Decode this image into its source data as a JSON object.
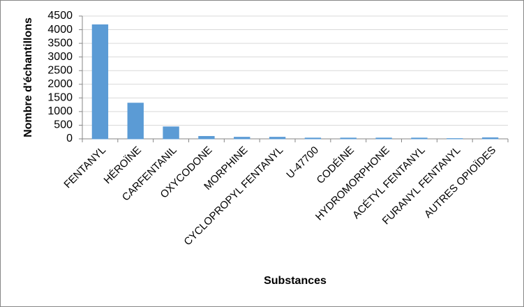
{
  "chart_data": {
    "type": "bar",
    "x_label": "Substances",
    "y_label": "Nombre d'échantillons",
    "categories": [
      "FENTANYL",
      "HÉROÏNE",
      "CARFENTANIL",
      "OXYCODONE",
      "MORPHINE",
      "CYCLOPROPYL FENTANYL",
      "U-47700",
      "CODÉINE",
      "HYDROMORPHONE",
      "ACÉTYL FENTANYL",
      "FURANYL FENTANYL",
      "AUTRES OPIOÏDES"
    ],
    "values": [
      4180,
      1310,
      440,
      90,
      60,
      60,
      30,
      30,
      30,
      30,
      10,
      40
    ],
    "color": "#5b9bd5",
    "ylim": [
      0,
      4500
    ],
    "yticks": [
      0,
      500,
      1000,
      1500,
      2000,
      2500,
      3000,
      3500,
      4000,
      4500
    ],
    "grid": true
  }
}
